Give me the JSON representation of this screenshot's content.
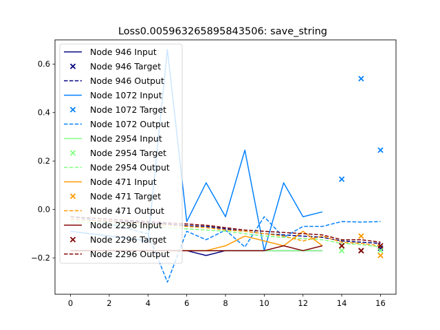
{
  "chart_data": {
    "type": "line",
    "title": "Loss0.005963265895843506: save_string",
    "xlabel": "",
    "ylabel": "",
    "xlim": [
      -0.8,
      16.8
    ],
    "ylim": [
      -0.35,
      0.7
    ],
    "xticks": [
      "0",
      "2",
      "4",
      "6",
      "8",
      "10",
      "12",
      "14",
      "16"
    ],
    "xtick_values": [
      0,
      2,
      4,
      6,
      8,
      10,
      12,
      14,
      16
    ],
    "yticks": [
      "−0.2",
      "0.0",
      "0.2",
      "0.4",
      "0.6"
    ],
    "ytick_values": [
      -0.2,
      0.0,
      0.2,
      0.4,
      0.6
    ],
    "grid": false,
    "legend_position": "upper-left",
    "series": [
      {
        "name": "Node 946 Input",
        "kind": "input",
        "color": "#000080",
        "x": [
          0,
          1,
          2,
          3,
          4,
          5,
          6,
          7,
          8,
          9,
          10,
          11,
          12,
          13
        ],
        "values": [
          -0.17,
          -0.17,
          -0.17,
          -0.17,
          -0.17,
          -0.17,
          -0.17,
          -0.19,
          -0.17,
          -0.17,
          -0.17,
          -0.17,
          -0.17,
          -0.17
        ]
      },
      {
        "name": "Node 946 Target",
        "kind": "target",
        "color": "#000080",
        "x": [
          14,
          15,
          16
        ],
        "values": [
          -0.15,
          -0.17,
          -0.16
        ]
      },
      {
        "name": "Node 946 Output",
        "kind": "output",
        "color": "#000080",
        "x": [
          0,
          1,
          2,
          3,
          4,
          5,
          6,
          7,
          8,
          9,
          10,
          11,
          12,
          13,
          14,
          15,
          16
        ],
        "values": [
          -0.04,
          -0.045,
          -0.048,
          -0.05,
          -0.055,
          -0.06,
          -0.067,
          -0.07,
          -0.08,
          -0.09,
          -0.1,
          -0.105,
          -0.11,
          -0.115,
          -0.13,
          -0.135,
          -0.14
        ]
      },
      {
        "name": "Node 1072 Input",
        "kind": "input",
        "color": "#0080ff",
        "x": [
          0,
          1,
          2,
          3,
          4,
          5,
          6,
          7,
          8,
          9,
          10,
          11,
          12,
          13
        ],
        "values": [
          -0.09,
          -0.1,
          -0.11,
          -0.12,
          -0.13,
          0.66,
          -0.05,
          0.11,
          -0.03,
          0.245,
          -0.17,
          0.11,
          -0.03,
          -0.01
        ]
      },
      {
        "name": "Node 1072 Target",
        "kind": "target",
        "color": "#0080ff",
        "x": [
          14,
          15,
          16
        ],
        "values": [
          0.125,
          0.54,
          0.245
        ]
      },
      {
        "name": "Node 1072 Output",
        "kind": "output",
        "color": "#0080ff",
        "x": [
          0,
          1,
          2,
          3,
          4,
          5,
          6,
          7,
          8,
          9,
          10,
          11,
          12,
          13,
          14,
          15,
          16
        ],
        "values": [
          -0.03,
          -0.04,
          -0.06,
          -0.08,
          -0.1,
          -0.3,
          -0.09,
          -0.125,
          -0.085,
          -0.155,
          -0.03,
          -0.115,
          -0.07,
          -0.07,
          -0.05,
          -0.052,
          -0.05
        ]
      },
      {
        "name": "Node 2954 Input",
        "kind": "input",
        "color": "#80ff80",
        "x": [
          0,
          1,
          2,
          3,
          4,
          5,
          6,
          7,
          8,
          9,
          10,
          11,
          12,
          13
        ],
        "values": [
          -0.17,
          -0.17,
          -0.17,
          -0.17,
          -0.17,
          -0.17,
          -0.17,
          -0.17,
          -0.17,
          -0.17,
          -0.17,
          -0.17,
          -0.17,
          -0.17
        ]
      },
      {
        "name": "Node 2954 Target",
        "kind": "target",
        "color": "#80ff80",
        "x": [
          14,
          15,
          16
        ],
        "values": [
          -0.17,
          -0.17,
          -0.17
        ]
      },
      {
        "name": "Node 2954 Output",
        "kind": "output",
        "color": "#80ff80",
        "x": [
          0,
          1,
          2,
          3,
          4,
          5,
          6,
          7,
          8,
          9,
          10,
          11,
          12,
          13,
          14,
          15,
          16
        ],
        "values": [
          -0.05,
          -0.055,
          -0.06,
          -0.065,
          -0.07,
          -0.075,
          -0.08,
          -0.085,
          -0.09,
          -0.1,
          -0.11,
          -0.115,
          -0.12,
          -0.125,
          -0.14,
          -0.145,
          -0.155
        ]
      },
      {
        "name": "Node 471 Input",
        "kind": "input",
        "color": "#ff9900",
        "x": [
          0,
          1,
          2,
          3,
          4,
          5,
          6,
          7,
          8,
          9,
          10,
          11,
          12,
          13
        ],
        "values": [
          -0.17,
          -0.17,
          -0.17,
          -0.17,
          -0.17,
          -0.17,
          -0.17,
          -0.17,
          -0.15,
          -0.11,
          -0.13,
          -0.15,
          -0.09,
          -0.15
        ]
      },
      {
        "name": "Node 471 Target",
        "kind": "target",
        "color": "#ff9900",
        "x": [
          14,
          15,
          16
        ],
        "values": [
          -0.15,
          -0.11,
          -0.19
        ]
      },
      {
        "name": "Node 471 Output",
        "kind": "output",
        "color": "#ff9900",
        "x": [
          0,
          1,
          2,
          3,
          4,
          5,
          6,
          7,
          8,
          9,
          10,
          11,
          12,
          13,
          14,
          15,
          16
        ],
        "values": [
          -0.04,
          -0.045,
          -0.05,
          -0.055,
          -0.06,
          -0.065,
          -0.07,
          -0.075,
          -0.085,
          -0.09,
          -0.1,
          -0.11,
          -0.13,
          -0.11,
          -0.135,
          -0.14,
          -0.15
        ]
      },
      {
        "name": "Node 2296 Input",
        "kind": "input",
        "color": "#800000",
        "x": [
          0,
          1,
          2,
          3,
          4,
          5,
          6,
          7,
          8,
          9,
          10,
          11,
          12,
          13
        ],
        "values": [
          -0.17,
          -0.17,
          -0.17,
          -0.17,
          -0.17,
          -0.17,
          -0.17,
          -0.17,
          -0.17,
          -0.17,
          -0.17,
          -0.15,
          -0.17,
          -0.15
        ]
      },
      {
        "name": "Node 2296 Target",
        "kind": "target",
        "color": "#800000",
        "x": [
          14,
          15,
          16
        ],
        "values": [
          -0.15,
          -0.17,
          -0.15
        ]
      },
      {
        "name": "Node 2296 Output",
        "kind": "output",
        "color": "#800000",
        "x": [
          0,
          1,
          2,
          3,
          4,
          5,
          6,
          7,
          8,
          9,
          10,
          11,
          12,
          13,
          14,
          15,
          16
        ],
        "values": [
          -0.03,
          -0.035,
          -0.04,
          -0.045,
          -0.05,
          -0.055,
          -0.06,
          -0.065,
          -0.075,
          -0.085,
          -0.09,
          -0.095,
          -0.1,
          -0.105,
          -0.125,
          -0.125,
          -0.135
        ]
      }
    ]
  }
}
